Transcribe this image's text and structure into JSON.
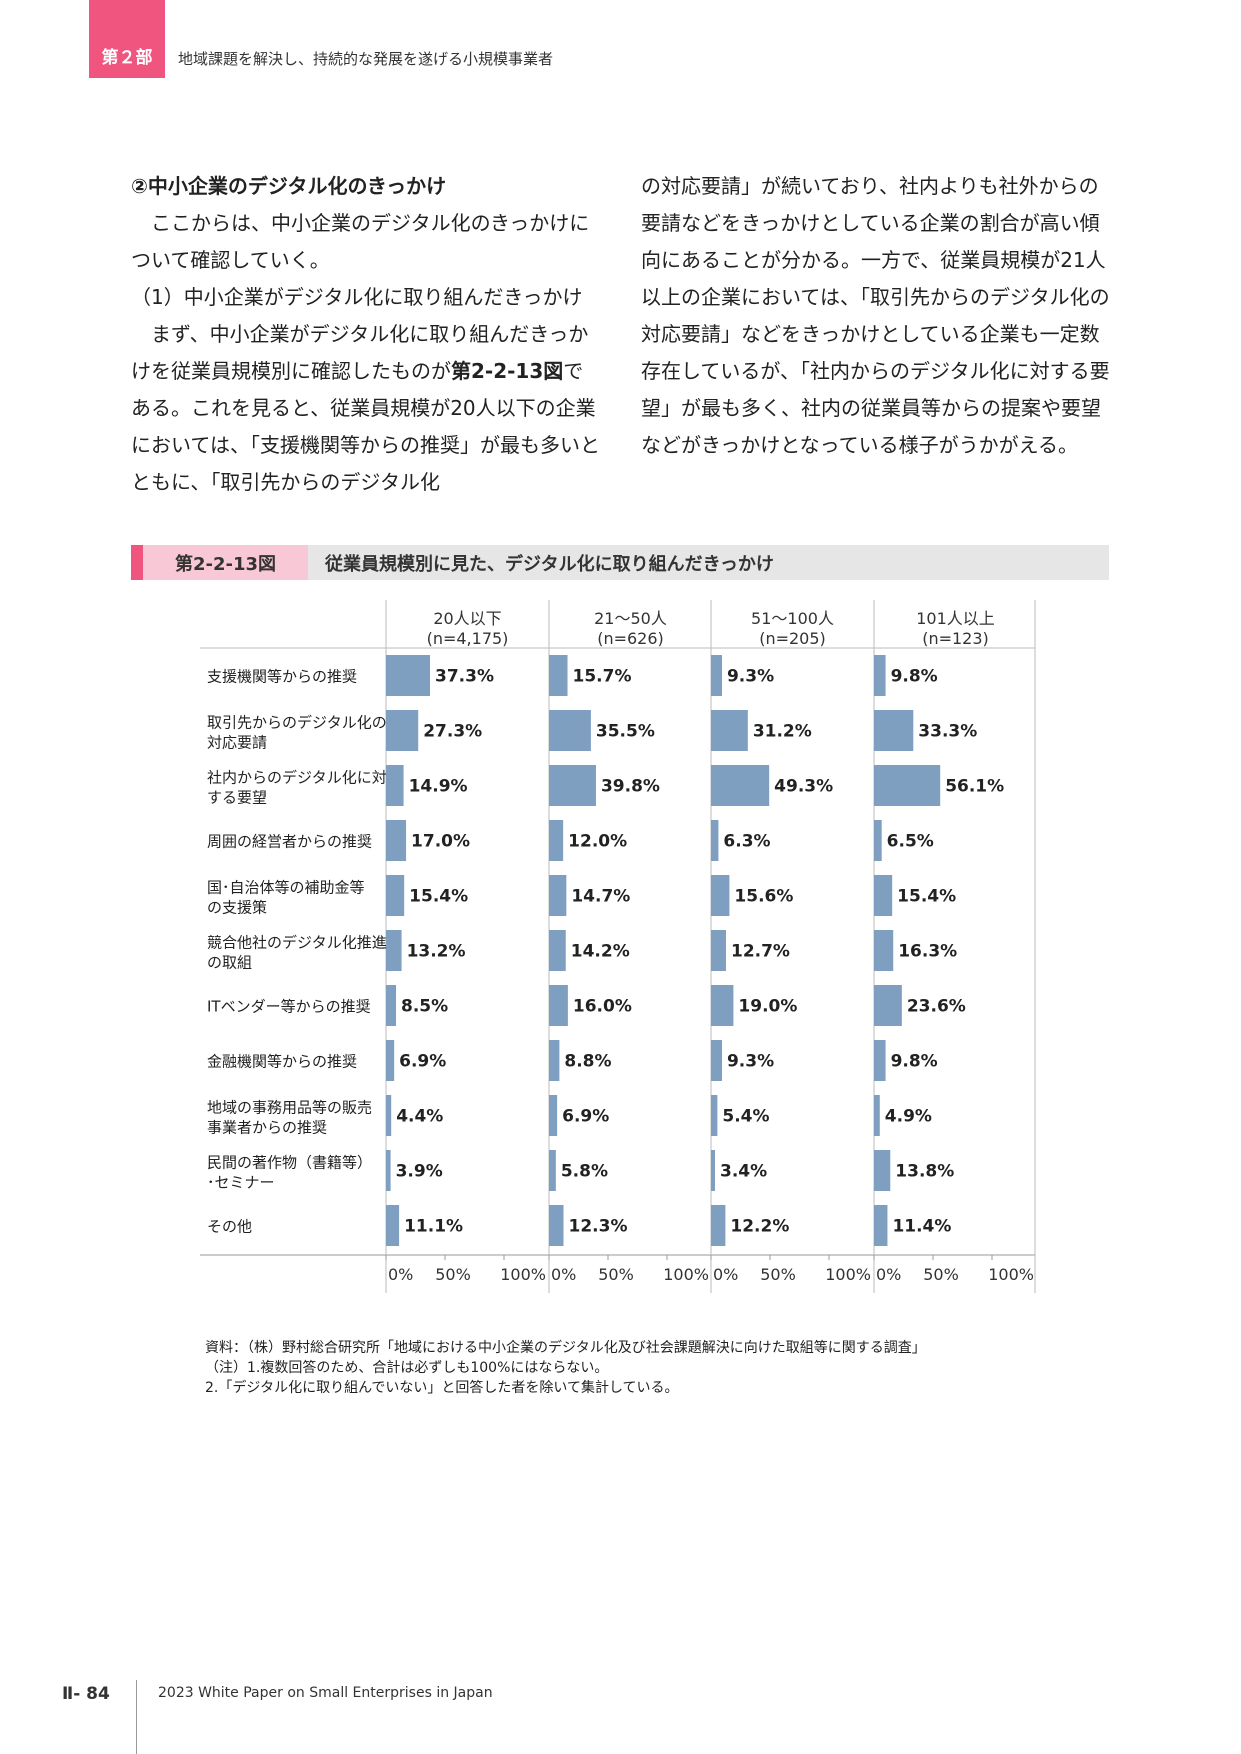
{
  "header": {
    "tab": "第２部",
    "title": "地域課題を解決し、持続的な発展を遂げる小規模事業者"
  },
  "body": {
    "left": [
      "②中小企業のデジタル化のきっかけ",
      "ここからは、中小企業のデジタル化のきっかけについて確認していく。",
      "（1）中小企業がデジタル化に取り組んだきっかけ",
      "まず、中小企業がデジタル化に取り組んだきっかけを従業員規模別に確認したものが",
      "第2-2-13図",
      "である。これを見ると、従業員規模が20人以下の企業においては、「支援機関等からの推奨」が最も多いとともに、「取引先からのデジタル化"
    ],
    "right": "の対応要請」が続いており、社内よりも社外からの要請などをきっかけとしている企業の割合が高い傾向にあることが分かる。一方で、従業員規模が21人以上の企業においては、「取引先からのデジタル化の対応要請」などをきっかけとしている企業も一定数存在しているが、「社内からのデジタル化に対する要望」が最も多く、社内の従業員等からの提案や要望などがきっかけとなっている様子がうかがえる。"
  },
  "figure": {
    "label": "第2-2-13図",
    "title": "従業員規模別に見た、デジタル化に取り組んだきっかけ"
  },
  "chart_data": {
    "type": "bar",
    "orientation": "horizontal",
    "panels": [
      {
        "name": "20人以下",
        "n": "(n=4,175)",
        "values": [
          37.3,
          27.3,
          14.9,
          17.0,
          15.4,
          13.2,
          8.5,
          6.9,
          4.4,
          3.9,
          11.1
        ]
      },
      {
        "name": "21〜50人",
        "n": "(n=626)",
        "values": [
          15.7,
          35.5,
          39.8,
          12.0,
          14.7,
          14.2,
          16.0,
          8.8,
          6.9,
          5.8,
          12.3
        ]
      },
      {
        "name": "51〜100人",
        "n": "(n=205)",
        "values": [
          9.3,
          31.2,
          49.3,
          6.3,
          15.6,
          12.7,
          19.0,
          9.3,
          5.4,
          3.4,
          12.2
        ]
      },
      {
        "name": "101人以上",
        "n": "(n=123)",
        "values": [
          9.8,
          33.3,
          56.1,
          6.5,
          15.4,
          16.3,
          23.6,
          9.8,
          4.9,
          13.8,
          11.4
        ]
      }
    ],
    "categories": [
      [
        "支援機関等からの推奨"
      ],
      [
        "取引先からのデジタル化の",
        "対応要請"
      ],
      [
        "社内からのデジタル化に対",
        "する要望"
      ],
      [
        "周囲の経営者からの推奨"
      ],
      [
        "国･自治体等の補助金等",
        "の支援策"
      ],
      [
        "競合他社のデジタル化推進",
        "の取組"
      ],
      [
        "ITベンダー等からの推奨"
      ],
      [
        "金融機関等からの推奨"
      ],
      [
        "地域の事務用品等の販売",
        "事業者からの推奨"
      ],
      [
        "民間の著作物（書籍等）",
        "･セミナー"
      ],
      [
        "その他"
      ]
    ],
    "xticks": [
      "0%",
      "50%",
      "100%"
    ],
    "xlim": [
      0,
      100
    ],
    "bar_color": "#7f9fc1"
  },
  "notes": [
    "資料：（株）野村総合研究所「地域における中小企業のデジタル化及び社会課題解決に向けた取組等に関する調査」",
    "（注）1.複数回答のため、合計は必ずしも100%にはならない。",
    "2.「デジタル化に取り組んでいない」と回答した者を除いて集計している。"
  ],
  "footer": {
    "page": "Ⅱ- 84",
    "text": "2023 White Paper on Small Enterprises in Japan"
  }
}
